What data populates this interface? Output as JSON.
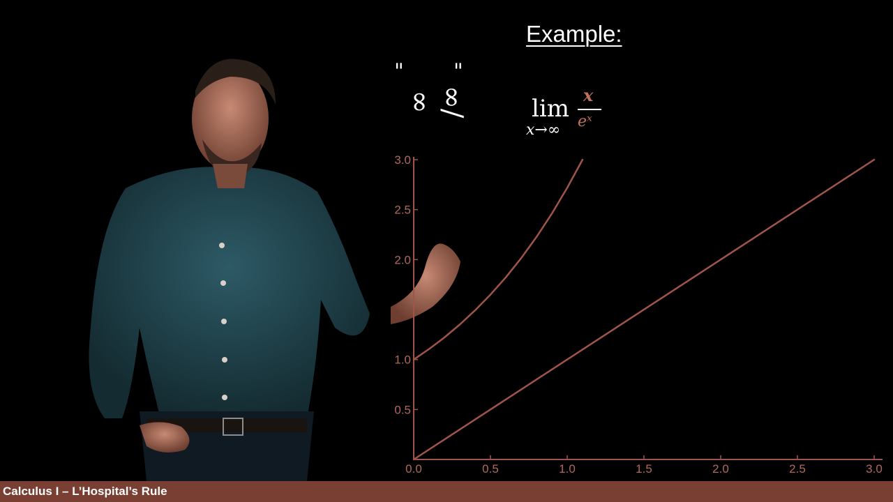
{
  "title": "Example:",
  "indeterminate_note": "∞/∞",
  "formula": {
    "lim": "lim",
    "subscript": "x→∞",
    "numerator": "x",
    "denominator": "eˣ"
  },
  "footer": "Calculus I – L’Hospital’s Rule",
  "colors": {
    "plot": "#a0554a",
    "tick_text": "#b06a5c",
    "footer_bg": "#7a3f33",
    "formula_accent": "#c0705e"
  },
  "chart_data": {
    "type": "line",
    "title": "",
    "xlabel": "",
    "ylabel": "",
    "xlim": [
      0,
      3
    ],
    "ylim": [
      0,
      3
    ],
    "x_ticks": [
      "0.0",
      "0.5",
      "1.0",
      "1.5",
      "2.0",
      "2.5",
      "3.0"
    ],
    "y_ticks": [
      "0.5",
      "1.0",
      "2.0",
      "2.5",
      "3.0"
    ],
    "grid": false,
    "series": [
      {
        "x": [
          0,
          0.1,
          0.2,
          0.3,
          0.4,
          0.5,
          0.6,
          0.7,
          0.8,
          0.9,
          1.0,
          1.1
        ],
        "y": [
          1.0,
          1.105,
          1.221,
          1.35,
          1.492,
          1.649,
          1.822,
          2.014,
          2.226,
          2.46,
          2.718,
          3.0
        ]
      },
      {
        "x": [
          0,
          3
        ],
        "y": [
          0,
          3
        ]
      }
    ]
  }
}
